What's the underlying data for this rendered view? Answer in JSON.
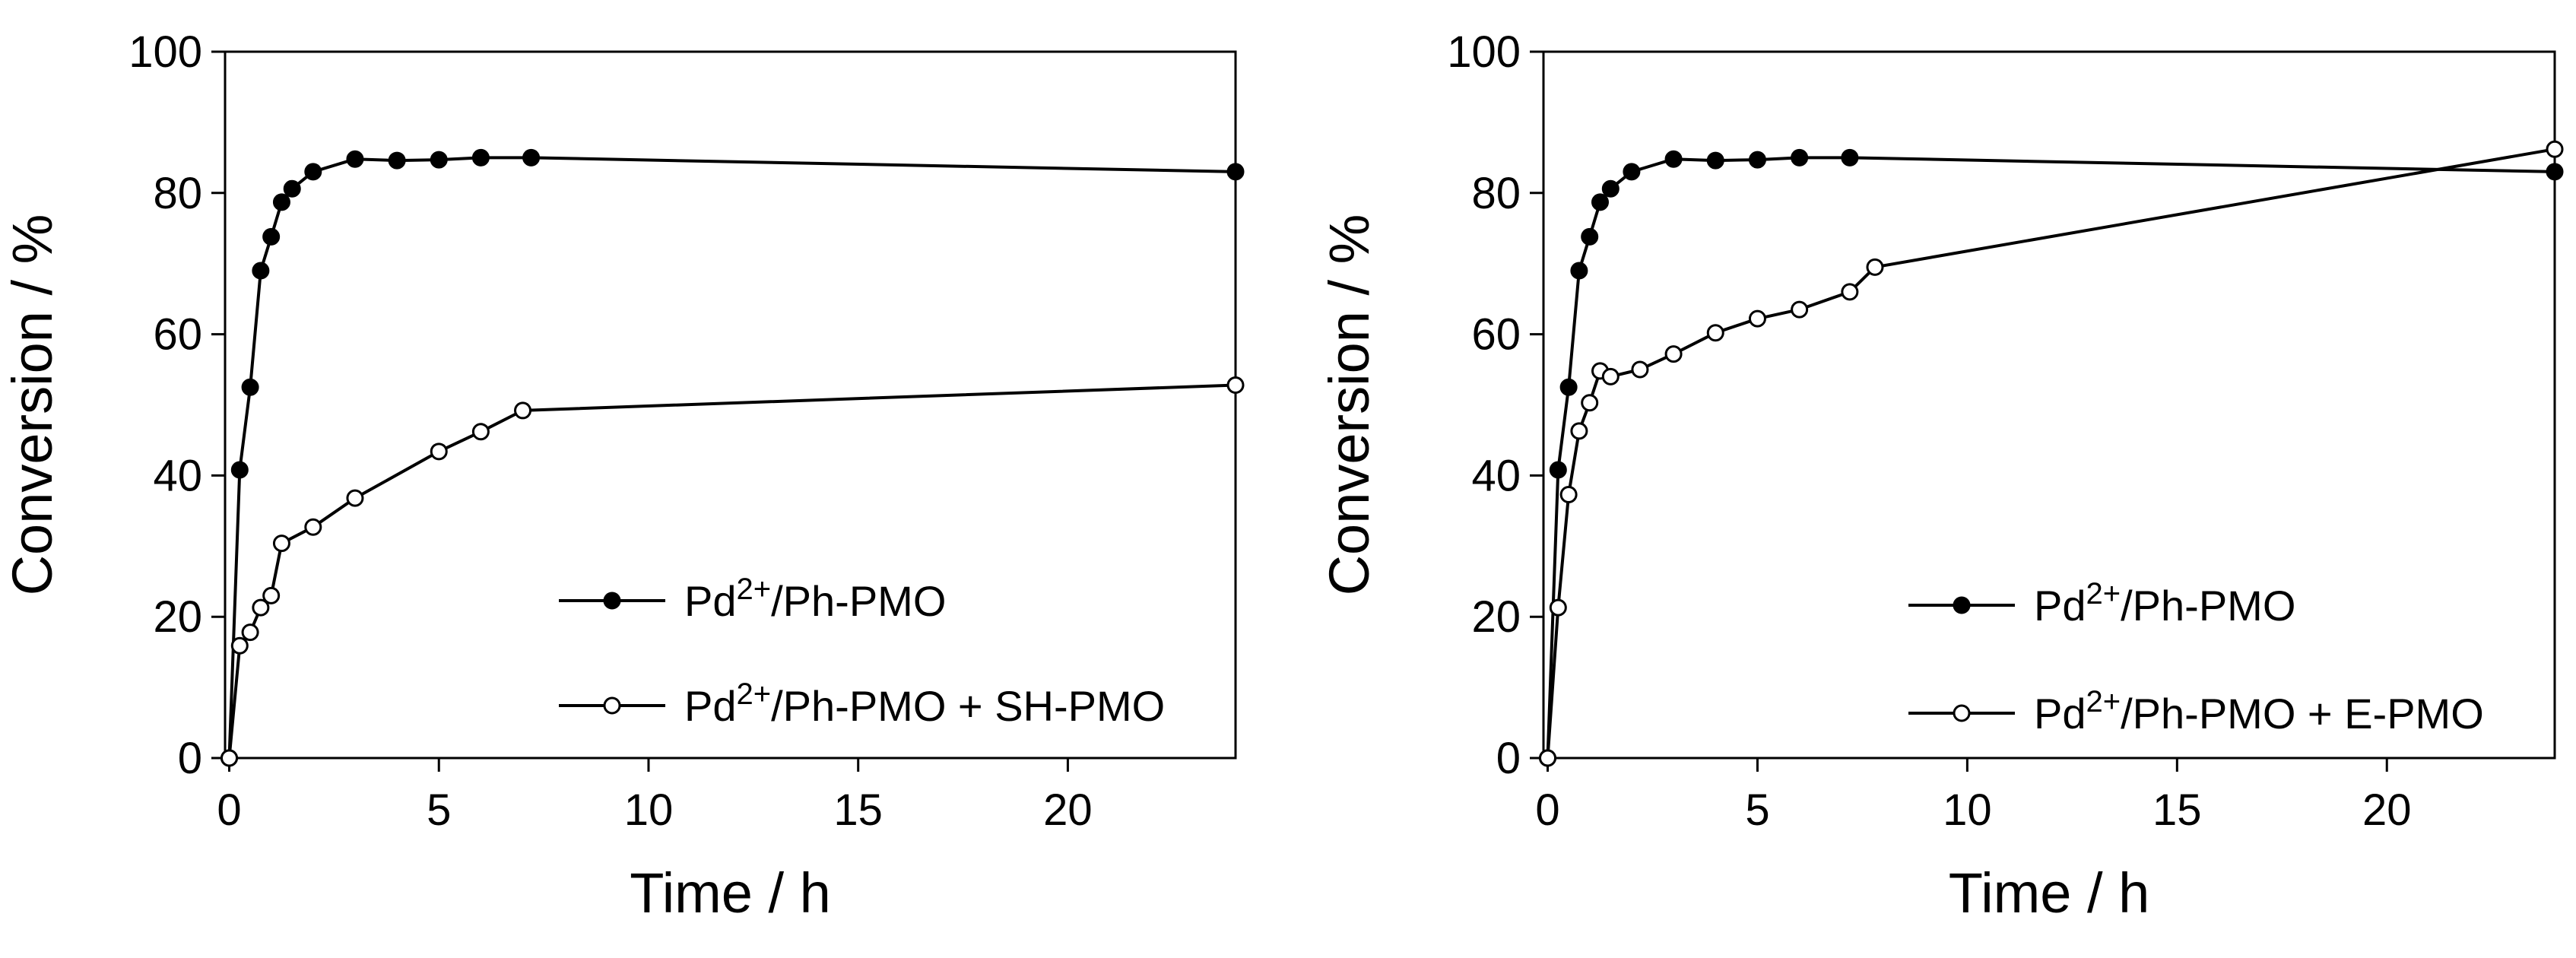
{
  "chart_data": [
    {
      "type": "line",
      "title": "",
      "xlabel": "Time / h",
      "ylabel": "Conversion / %",
      "xlim": [
        -0.1,
        24
      ],
      "ylim": [
        0,
        100
      ],
      "xticks": [
        0,
        5,
        10,
        15,
        20
      ],
      "yticks": [
        0,
        20,
        40,
        60,
        80,
        100
      ],
      "legend_position": "bottom-right",
      "grid": false,
      "series": [
        {
          "name": "Pd2+/Ph-PMO",
          "legend_main": "Pd",
          "legend_sup": "2+",
          "legend_rest": "/Ph-PMO",
          "marker": "filled-circle",
          "x": [
            0,
            0.25,
            0.5,
            0.75,
            1,
            1.25,
            1.5,
            2,
            3,
            4,
            5,
            6,
            7.2,
            24
          ],
          "y": [
            0,
            40.8,
            52.5,
            69,
            73.8,
            78.7,
            80.6,
            83,
            84.8,
            84.6,
            84.7,
            85,
            85,
            83
          ]
        },
        {
          "name": "Pd2+/Ph-PMO + SH-PMO",
          "legend_main": "Pd",
          "legend_sup": "2+",
          "legend_rest": "/Ph-PMO + SH-PMO",
          "marker": "open-circle",
          "x": [
            0,
            0.25,
            0.5,
            0.75,
            1,
            1.25,
            2,
            3,
            5,
            6,
            7,
            24
          ],
          "y": [
            0,
            15.9,
            17.8,
            21.3,
            23,
            30.4,
            32.7,
            36.8,
            43.4,
            46.2,
            49.2,
            52.8
          ]
        }
      ]
    },
    {
      "type": "line",
      "title": "",
      "xlabel": "Time / h",
      "ylabel": "Conversion / %",
      "xlim": [
        -0.1,
        24
      ],
      "ylim": [
        0,
        100
      ],
      "xticks": [
        0,
        5,
        10,
        15,
        20
      ],
      "yticks": [
        0,
        20,
        40,
        60,
        80,
        100
      ],
      "legend_position": "bottom-right",
      "grid": false,
      "series": [
        {
          "name": "Pd2+/Ph-PMO",
          "legend_main": "Pd",
          "legend_sup": "2+",
          "legend_rest": "/Ph-PMO",
          "marker": "filled-circle",
          "x": [
            0,
            0.25,
            0.5,
            0.75,
            1,
            1.25,
            1.5,
            2,
            3,
            4,
            5,
            6,
            7.2,
            24
          ],
          "y": [
            0,
            40.8,
            52.5,
            69,
            73.8,
            78.7,
            80.6,
            83,
            84.8,
            84.6,
            84.7,
            85,
            85,
            83
          ]
        },
        {
          "name": "Pd2+/Ph-PMO + E-PMO",
          "legend_main": "Pd",
          "legend_sup": "2+",
          "legend_rest": "/Ph-PMO + E-PMO",
          "marker": "open-circle",
          "x": [
            0,
            0.25,
            0.5,
            0.75,
            1,
            1.25,
            1.5,
            2.2,
            3,
            4,
            5,
            6,
            7.2,
            7.8,
            24
          ],
          "y": [
            0,
            21.3,
            37.3,
            46.3,
            50.3,
            54.8,
            54,
            55,
            57.2,
            60.2,
            62.2,
            63.5,
            66,
            69.5,
            86.2
          ]
        }
      ]
    }
  ]
}
